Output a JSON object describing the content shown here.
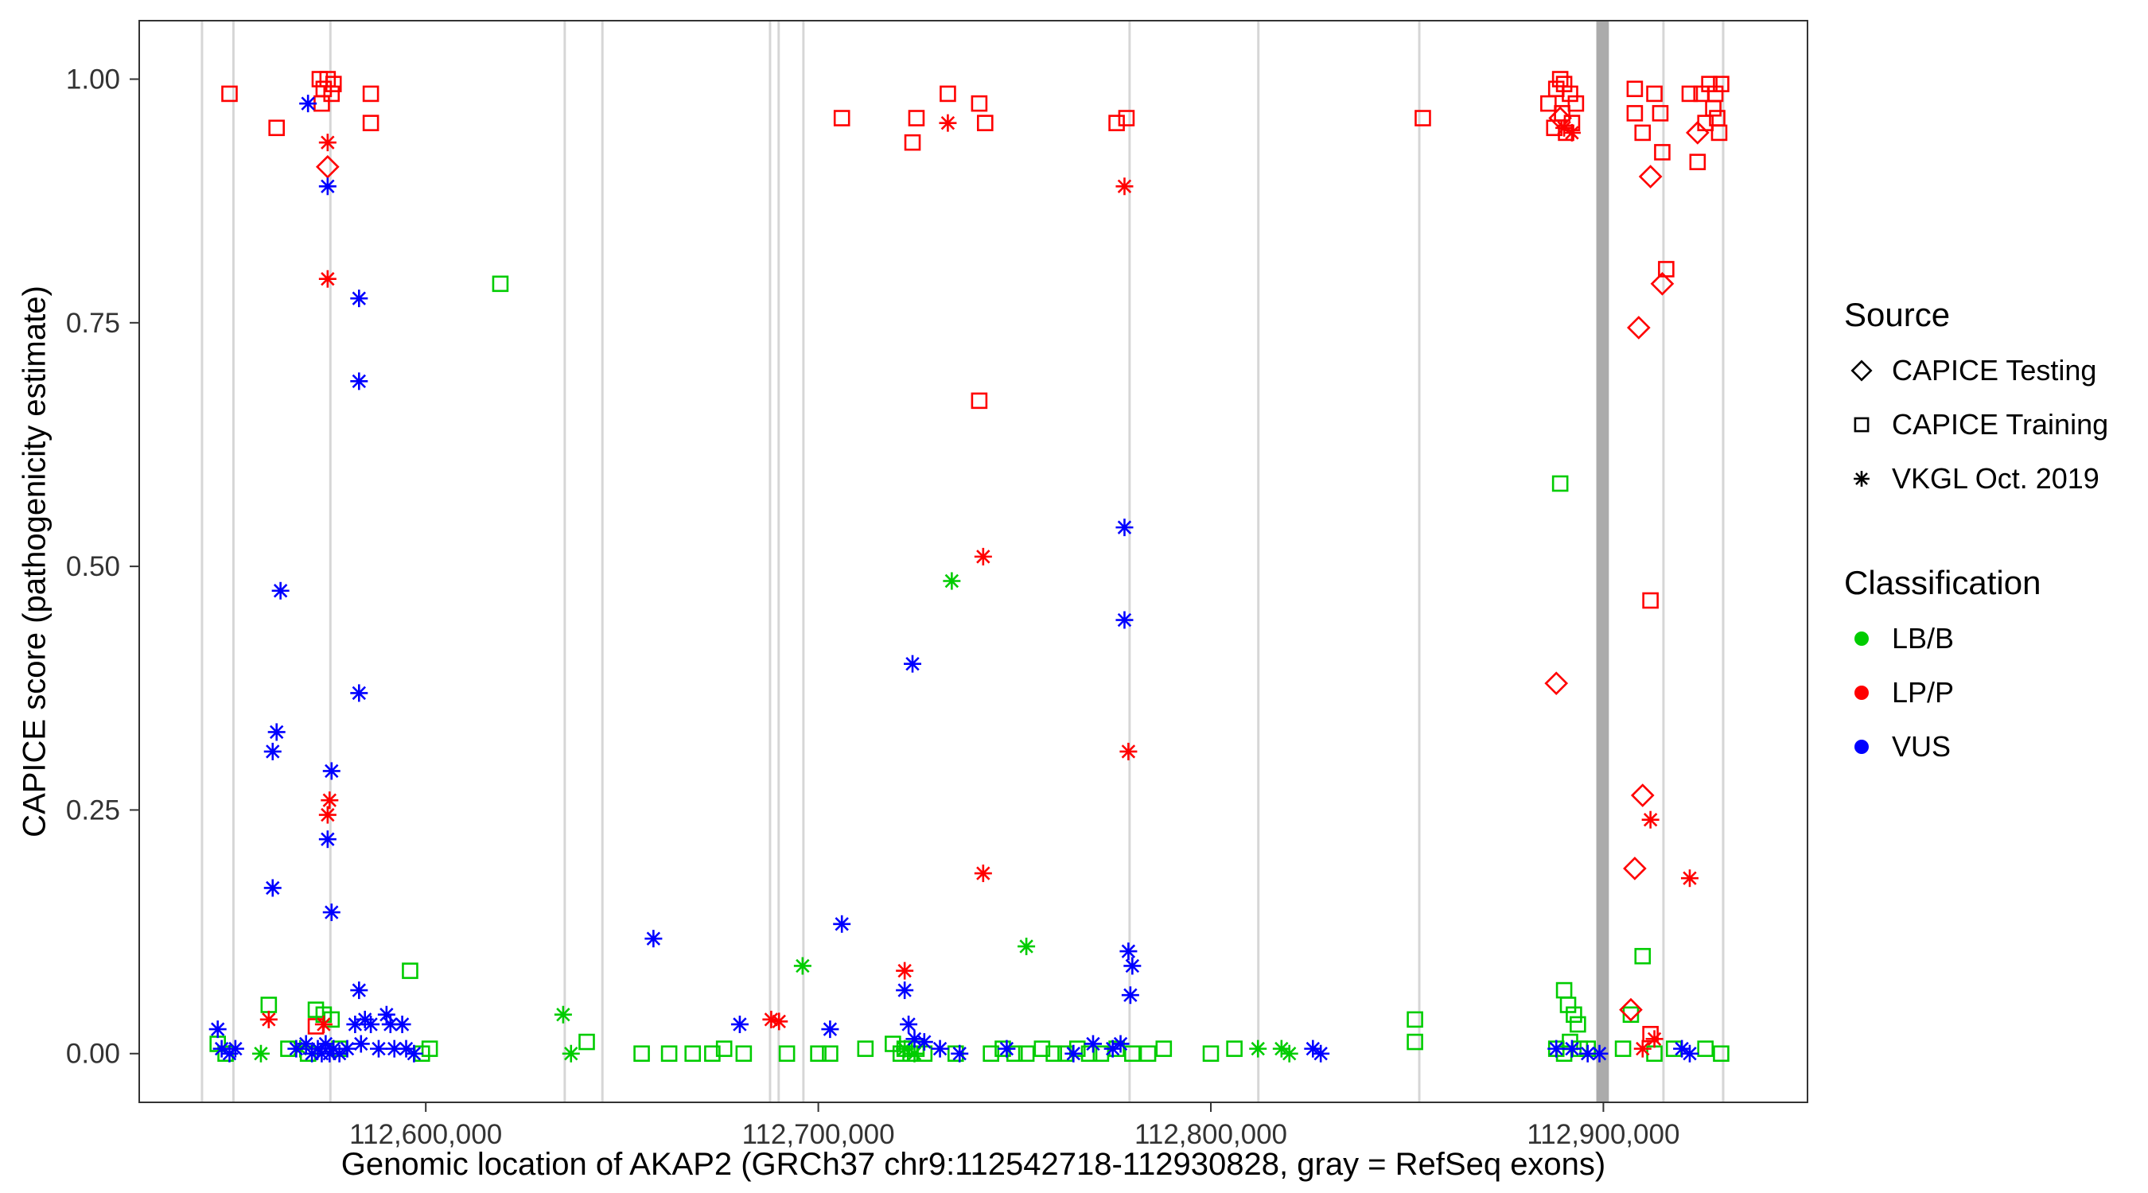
{
  "chart_data": {
    "type": "scatter",
    "title": "",
    "xlabel": "Genomic location of AKAP2 (GRCh37 chr9:112542718-112930828, gray = RefSeq exons)",
    "ylabel": "CAPICE score (pathogenicity estimate)",
    "xlim": [
      112527000,
      112952000
    ],
    "ylim": [
      -0.05,
      1.06
    ],
    "grid": "off",
    "x_ticks": [
      {
        "value": 112600000,
        "label": "112,600,000"
      },
      {
        "value": 112700000,
        "label": "112,700,000"
      },
      {
        "value": 112800000,
        "label": "112,800,000"
      },
      {
        "value": 112900000,
        "label": "112,900,000"
      }
    ],
    "y_ticks": [
      {
        "value": 0,
        "label": "0.00"
      },
      {
        "value": 0.25,
        "label": "0.25"
      },
      {
        "value": 0.5,
        "label": "0.50"
      },
      {
        "value": 0.75,
        "label": "0.75"
      },
      {
        "value": 1,
        "label": "1.00"
      }
    ],
    "classification_colors": {
      "LB/B": "#00CC00",
      "LP/P": "#FF0000",
      "VUS": "#0000FF"
    },
    "source_markers": {
      "CAPICE Testing": "diamond",
      "CAPICE Training": "square",
      "VKGL Oct. 2019": "asterisk"
    },
    "exon_default_color": "#d6d6d6",
    "exons": [
      {
        "start": 112542700,
        "end": 112543300
      },
      {
        "start": 112550700,
        "end": 112551300
      },
      {
        "start": 112575400,
        "end": 112576000
      },
      {
        "start": 112635100,
        "end": 112635700
      },
      {
        "start": 112644700,
        "end": 112645300
      },
      {
        "start": 112687400,
        "end": 112688000
      },
      {
        "start": 112689600,
        "end": 112690200
      },
      {
        "start": 112695900,
        "end": 112696500
      },
      {
        "start": 112779000,
        "end": 112779600
      },
      {
        "start": 112811800,
        "end": 112812400
      },
      {
        "start": 112852800,
        "end": 112853400
      },
      {
        "start": 112898200,
        "end": 112901400,
        "color": "#ababab"
      },
      {
        "start": 112915000,
        "end": 112915600
      },
      {
        "start": 112930200,
        "end": 112930830
      }
    ],
    "legend": {
      "source": {
        "title": "Source",
        "items": [
          {
            "label": "CAPICE Testing",
            "marker": "diamond"
          },
          {
            "label": "CAPICE Training",
            "marker": "square"
          },
          {
            "label": "VKGL Oct. 2019",
            "marker": "asterisk"
          }
        ]
      },
      "classification": {
        "title": "Classification",
        "items": [
          {
            "label": "LB/B",
            "color": "#00CC00"
          },
          {
            "label": "LP/P",
            "color": "#FF0000"
          },
          {
            "label": "VUS",
            "color": "#0000FF"
          }
        ]
      }
    },
    "series": [
      {
        "source": "CAPICE Training",
        "classification": "LP/P",
        "points": [
          [
            112550000,
            0.985
          ],
          [
            112562000,
            0.95
          ],
          [
            112573000,
            1.0
          ],
          [
            112575000,
            1.0
          ],
          [
            112576500,
            0.995
          ],
          [
            112574000,
            0.99
          ],
          [
            112576000,
            0.985
          ],
          [
            112573500,
            0.975
          ],
          [
            112586000,
            0.985
          ],
          [
            112586000,
            0.955
          ],
          [
            112572000,
            0.028
          ],
          [
            112706000,
            0.96
          ],
          [
            112725000,
            0.96
          ],
          [
            112724000,
            0.935
          ],
          [
            112733000,
            0.985
          ],
          [
            112741000,
            0.975
          ],
          [
            112742500,
            0.955
          ],
          [
            112741000,
            0.67
          ],
          [
            112776000,
            0.955
          ],
          [
            112778500,
            0.96
          ],
          [
            112854000,
            0.96
          ],
          [
            112886000,
            0.975
          ],
          [
            112888000,
            0.99
          ],
          [
            112889000,
            1.0
          ],
          [
            112890000,
            0.995
          ],
          [
            112891500,
            0.985
          ],
          [
            112893000,
            0.975
          ],
          [
            112889500,
            0.965
          ],
          [
            112892000,
            0.955
          ],
          [
            112887500,
            0.95
          ],
          [
            112890500,
            0.945
          ],
          [
            112908000,
            0.99
          ],
          [
            112908000,
            0.965
          ],
          [
            112910000,
            0.945
          ],
          [
            112913000,
            0.985
          ],
          [
            112914500,
            0.965
          ],
          [
            112915000,
            0.925
          ],
          [
            112916000,
            0.805
          ],
          [
            112912000,
            0.465
          ],
          [
            112912000,
            0.02
          ],
          [
            112922000,
            0.985
          ],
          [
            112925000,
            0.985
          ],
          [
            112927000,
            0.995
          ],
          [
            112928500,
            0.985
          ],
          [
            112928000,
            0.97
          ],
          [
            112926000,
            0.955
          ],
          [
            112929500,
            0.945
          ],
          [
            112924000,
            0.915
          ],
          [
            112930000,
            0.995
          ],
          [
            112929000,
            0.96
          ]
        ]
      },
      {
        "source": "CAPICE Training",
        "classification": "LB/B",
        "points": [
          [
            112547000,
            0.01
          ],
          [
            112549000,
            0.0
          ],
          [
            112560000,
            0.05
          ],
          [
            112565000,
            0.005
          ],
          [
            112572000,
            0.045
          ],
          [
            112574000,
            0.04
          ],
          [
            112576000,
            0.035
          ],
          [
            112570000,
            0.0
          ],
          [
            112578000,
            0.005
          ],
          [
            112596000,
            0.085
          ],
          [
            112599000,
            0.0
          ],
          [
            112601000,
            0.005
          ],
          [
            112619000,
            0.79
          ],
          [
            112641000,
            0.012
          ],
          [
            112655000,
            0.0
          ],
          [
            112662000,
            0.0
          ],
          [
            112668000,
            0.0
          ],
          [
            112673000,
            0.0
          ],
          [
            112676000,
            0.005
          ],
          [
            112681000,
            0.0
          ],
          [
            112692000,
            0.0
          ],
          [
            112700000,
            0.0
          ],
          [
            112703000,
            0.0
          ],
          [
            112712000,
            0.005
          ],
          [
            112719000,
            0.01
          ],
          [
            112721000,
            0.0
          ],
          [
            112722000,
            0.005
          ],
          [
            112723500,
            0.0
          ],
          [
            112725000,
            0.005
          ],
          [
            112727000,
            0.0
          ],
          [
            112735000,
            0.0
          ],
          [
            112744000,
            0.0
          ],
          [
            112747000,
            0.005
          ],
          [
            112750000,
            0.0
          ],
          [
            112753000,
            0.0
          ],
          [
            112757000,
            0.005
          ],
          [
            112760000,
            0.0
          ],
          [
            112763000,
            0.0
          ],
          [
            112766000,
            0.005
          ],
          [
            112769000,
            0.0
          ],
          [
            112772000,
            0.0
          ],
          [
            112776000,
            0.005
          ],
          [
            112780000,
            0.0
          ],
          [
            112784000,
            0.0
          ],
          [
            112788000,
            0.005
          ],
          [
            112800000,
            0.0
          ],
          [
            112806000,
            0.005
          ],
          [
            112852000,
            0.035
          ],
          [
            112852000,
            0.012
          ],
          [
            112888000,
            0.005
          ],
          [
            112890000,
            0.0
          ],
          [
            112890000,
            0.065
          ],
          [
            112891000,
            0.05
          ],
          [
            112892500,
            0.04
          ],
          [
            112893500,
            0.03
          ],
          [
            112891500,
            0.012
          ],
          [
            112894000,
            0.005
          ],
          [
            112896000,
            0.005
          ],
          [
            112889000,
            0.585
          ],
          [
            112910000,
            0.1
          ],
          [
            112907000,
            0.04
          ],
          [
            112905000,
            0.005
          ],
          [
            112913000,
            0.0
          ],
          [
            112918000,
            0.005
          ],
          [
            112926000,
            0.005
          ],
          [
            112930000,
            0.0
          ]
        ]
      },
      {
        "source": "CAPICE Testing",
        "classification": "LP/P",
        "points": [
          [
            112575000,
            0.91
          ],
          [
            112889000,
            0.96
          ],
          [
            112888000,
            0.38
          ],
          [
            112924000,
            0.945
          ],
          [
            112912000,
            0.9
          ],
          [
            112915000,
            0.79
          ],
          [
            112909000,
            0.745
          ],
          [
            112910000,
            0.265
          ],
          [
            112908000,
            0.19
          ],
          [
            112907000,
            0.045
          ]
        ]
      },
      {
        "source": "VKGL Oct. 2019",
        "classification": "LP/P",
        "points": [
          [
            112575000,
            0.935
          ],
          [
            112575000,
            0.795
          ],
          [
            112575500,
            0.26
          ],
          [
            112575000,
            0.245
          ],
          [
            112560000,
            0.035
          ],
          [
            112574000,
            0.03
          ],
          [
            112688000,
            0.035
          ],
          [
            112690000,
            0.033
          ],
          [
            112733000,
            0.955
          ],
          [
            112742000,
            0.51
          ],
          [
            112742000,
            0.185
          ],
          [
            112722000,
            0.085
          ],
          [
            112778000,
            0.89
          ],
          [
            112779000,
            0.31
          ],
          [
            112890000,
            0.95
          ],
          [
            112892000,
            0.945
          ],
          [
            112912000,
            0.24
          ],
          [
            112922000,
            0.18
          ],
          [
            112910000,
            0.005
          ],
          [
            112913000,
            0.015
          ]
        ]
      },
      {
        "source": "VKGL Oct. 2019",
        "classification": "LB/B",
        "points": [
          [
            112558000,
            0.0
          ],
          [
            112568000,
            0.005
          ],
          [
            112635000,
            0.04
          ],
          [
            112637000,
            0.0
          ],
          [
            112696000,
            0.09
          ],
          [
            112722000,
            0.005
          ],
          [
            112724500,
            0.0
          ],
          [
            112734000,
            0.485
          ],
          [
            112753000,
            0.11
          ],
          [
            112812000,
            0.005
          ],
          [
            112818000,
            0.005
          ],
          [
            112820000,
            0.0
          ]
        ]
      },
      {
        "source": "VKGL Oct. 2019",
        "classification": "VUS",
        "points": [
          [
            112547000,
            0.025
          ],
          [
            112548000,
            0.005
          ],
          [
            112550000,
            0.0
          ],
          [
            112551500,
            0.005
          ],
          [
            112563000,
            0.475
          ],
          [
            112562000,
            0.33
          ],
          [
            112561000,
            0.31
          ],
          [
            112561000,
            0.17
          ],
          [
            112570000,
            0.975
          ],
          [
            112575000,
            0.89
          ],
          [
            112583000,
            0.775
          ],
          [
            112583000,
            0.69
          ],
          [
            112583000,
            0.37
          ],
          [
            112576000,
            0.29
          ],
          [
            112575000,
            0.22
          ],
          [
            112576000,
            0.145
          ],
          [
            112583000,
            0.065
          ],
          [
            112567000,
            0.005
          ],
          [
            112569500,
            0.01
          ],
          [
            112571000,
            0.0
          ],
          [
            112572500,
            0.005
          ],
          [
            112573500,
            0.0
          ],
          [
            112574500,
            0.01
          ],
          [
            112575500,
            0.0
          ],
          [
            112576500,
            0.005
          ],
          [
            112578000,
            0.0
          ],
          [
            112580000,
            0.005
          ],
          [
            112582000,
            0.03
          ],
          [
            112583500,
            0.01
          ],
          [
            112584500,
            0.035
          ],
          [
            112586000,
            0.03
          ],
          [
            112588000,
            0.005
          ],
          [
            112590000,
            0.04
          ],
          [
            112591000,
            0.03
          ],
          [
            112592000,
            0.005
          ],
          [
            112594000,
            0.03
          ],
          [
            112595000,
            0.005
          ],
          [
            112597000,
            0.0
          ],
          [
            112658000,
            0.118
          ],
          [
            112680000,
            0.03
          ],
          [
            112703000,
            0.025
          ],
          [
            112706000,
            0.133
          ],
          [
            112724000,
            0.4
          ],
          [
            112722000,
            0.065
          ],
          [
            112723000,
            0.03
          ],
          [
            112724500,
            0.015
          ],
          [
            112727000,
            0.012
          ],
          [
            112731000,
            0.005
          ],
          [
            112736000,
            0.0
          ],
          [
            112748000,
            0.005
          ],
          [
            112765000,
            0.0
          ],
          [
            112770000,
            0.01
          ],
          [
            112778000,
            0.54
          ],
          [
            112778000,
            0.445
          ],
          [
            112779000,
            0.105
          ],
          [
            112780000,
            0.09
          ],
          [
            112779500,
            0.06
          ],
          [
            112777000,
            0.01
          ],
          [
            112775000,
            0.005
          ],
          [
            112826000,
            0.005
          ],
          [
            112828000,
            0.0
          ],
          [
            112888000,
            0.005
          ],
          [
            112892000,
            0.005
          ],
          [
            112896000,
            0.0
          ],
          [
            112899000,
            0.0
          ],
          [
            112920000,
            0.005
          ],
          [
            112922000,
            0.0
          ]
        ]
      }
    ]
  }
}
